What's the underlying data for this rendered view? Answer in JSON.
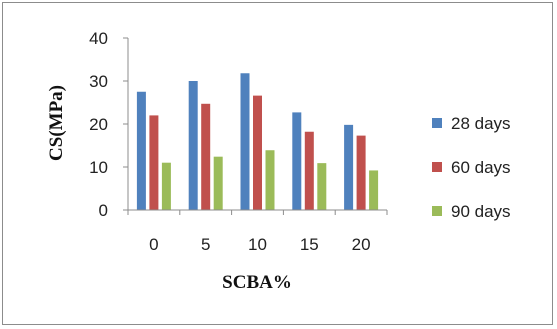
{
  "chart_data": {
    "type": "bar",
    "xlabel": "SCBA%",
    "ylabel": "CS(MPa)",
    "categories": [
      "0",
      "5",
      "10",
      "15",
      "20"
    ],
    "series": [
      {
        "name": "28 days",
        "color": "#4f81bd",
        "values": [
          27.5,
          30,
          31.8,
          22.7,
          19.8
        ]
      },
      {
        "name": "60 days",
        "color": "#c0504d",
        "values": [
          22,
          24.7,
          26.6,
          18.2,
          17.3
        ]
      },
      {
        "name": "90 days",
        "color": "#9bbb59",
        "values": [
          11,
          12.4,
          13.9,
          10.9,
          9.2
        ]
      }
    ],
    "ylim": [
      0,
      40
    ],
    "yticks": [
      0,
      10,
      20,
      30,
      40
    ],
    "grid": false,
    "legend_position": "right"
  }
}
